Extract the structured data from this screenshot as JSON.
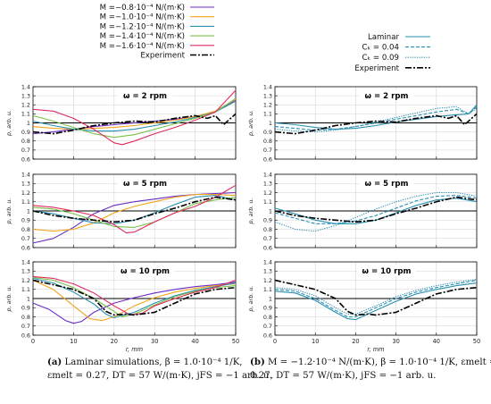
{
  "legend_left": [
    {
      "label": "M =−0.8·10⁻⁴ N/(m·K)",
      "color": "#6a2bc4"
    },
    {
      "label": "M =−1.0·10⁻⁴ N/(m·K)",
      "color": "#f2a51c"
    },
    {
      "label": "M =−1.2·10⁻⁴ N/(m·K)",
      "color": "#2a8fb0"
    },
    {
      "label": "M =−1.4·10⁻⁴ N/(m·K)",
      "color": "#7ac04a"
    },
    {
      "label": "M =−1.6·10⁻⁴ N/(m·K)",
      "color": "#e02a5e"
    },
    {
      "label": "Experiment",
      "color": "#000000"
    }
  ],
  "legend_right": [
    {
      "label": "Laminar",
      "color": "#2a8fb0"
    },
    {
      "label": "Cₖ = 0.04",
      "color": "#2a8fb0"
    },
    {
      "label": "Cₖ = 0.09",
      "color": "#2a8fb0"
    },
    {
      "label": "Experiment",
      "color": "#000000"
    }
  ],
  "captions": {
    "a_tag": "(a)",
    "a_line1": " Laminar simulations, β = 1.0·10⁻⁴ 1/K,",
    "a_line2": "εmelt = 0.27, DT = 57 W/(m·K), jFS = −1 arb. u.",
    "b_tag": "(b)",
    "b_line1": " M = −1.2·10⁻⁴ N/(m·K), β = 1.0·10⁻⁴ 1/K, εmelt =",
    "b_line2": "0.27, DT = 57 W/(m·K), jFS = −1 arb. u."
  },
  "chart_data": [
    {
      "type": "line",
      "panel": "left-1",
      "annotation": "ω = 2 rpm",
      "ylabel": "p, arb. u.",
      "xlim": [
        0,
        50
      ],
      "ylim": [
        0.6,
        1.4
      ],
      "xticks": [],
      "grid": true,
      "series": [
        {
          "name": "M =−0.8·10⁻⁴ N/(m·K)",
          "x": [
            0,
            5,
            10,
            15,
            20,
            25,
            30,
            35,
            40,
            45,
            50
          ],
          "y": [
            0.88,
            0.9,
            0.93,
            0.96,
            0.98,
            1.0,
            1.02,
            1.04,
            1.07,
            1.12,
            1.25
          ]
        },
        {
          "name": "M =−1.0·10⁻⁴ N/(m·K)",
          "x": [
            0,
            5,
            10,
            15,
            20,
            25,
            30,
            35,
            40,
            45,
            50
          ],
          "y": [
            0.96,
            0.94,
            0.93,
            0.94,
            0.95,
            0.97,
            1.0,
            1.03,
            1.07,
            1.13,
            1.26
          ]
        },
        {
          "name": "M =−1.2·10⁻⁴ N/(m·K)",
          "x": [
            0,
            5,
            10,
            15,
            20,
            25,
            30,
            35,
            40,
            45,
            50
          ],
          "y": [
            1.02,
            0.97,
            0.93,
            0.91,
            0.91,
            0.93,
            0.97,
            1.01,
            1.06,
            1.12,
            1.24
          ]
        },
        {
          "name": "M =−1.4·10⁻⁴ N/(m·K)",
          "x": [
            0,
            5,
            10,
            15,
            20,
            25,
            30,
            35,
            40,
            45,
            50
          ],
          "y": [
            1.08,
            1.02,
            0.95,
            0.88,
            0.84,
            0.87,
            0.93,
            0.99,
            1.05,
            1.12,
            1.27
          ]
        },
        {
          "name": "M =−1.6·10⁻⁴ N/(m·K)",
          "x": [
            0,
            5,
            10,
            15,
            20,
            22,
            25,
            30,
            35,
            40,
            45,
            50
          ],
          "y": [
            1.15,
            1.13,
            1.05,
            0.93,
            0.78,
            0.76,
            0.8,
            0.88,
            0.95,
            1.03,
            1.12,
            1.36
          ]
        },
        {
          "name": "Experiment",
          "x": [
            0,
            5,
            10,
            15,
            20,
            25,
            30,
            35,
            40,
            43,
            45,
            47,
            50
          ],
          "y": [
            0.9,
            0.88,
            0.92,
            0.97,
            1.0,
            1.02,
            1.01,
            1.05,
            1.08,
            1.05,
            1.08,
            0.98,
            1.1
          ]
        }
      ]
    },
    {
      "type": "line",
      "panel": "left-2",
      "annotation": "ω = 5 rpm",
      "ylabel": "p, arb. u.",
      "xlim": [
        0,
        50
      ],
      "ylim": [
        0.6,
        1.4
      ],
      "xticks": [],
      "grid": true,
      "series": [
        {
          "name": "M =−0.8·10⁻⁴ N/(m·K)",
          "x": [
            0,
            5,
            10,
            15,
            20,
            25,
            30,
            35,
            40,
            45,
            50
          ],
          "y": [
            0.65,
            0.7,
            0.82,
            0.97,
            1.06,
            1.1,
            1.13,
            1.16,
            1.18,
            1.19,
            1.2
          ]
        },
        {
          "name": "M =−1.0·10⁻⁴ N/(m·K)",
          "x": [
            0,
            5,
            10,
            15,
            20,
            25,
            30,
            35,
            40,
            45,
            50
          ],
          "y": [
            0.8,
            0.78,
            0.8,
            0.87,
            0.98,
            1.05,
            1.1,
            1.15,
            1.18,
            1.18,
            1.17
          ]
        },
        {
          "name": "M =−1.2·10⁻⁴ N/(m·K)",
          "x": [
            0,
            5,
            10,
            15,
            20,
            25,
            30,
            35,
            40,
            45,
            50
          ],
          "y": [
            1.0,
            0.97,
            0.92,
            0.87,
            0.86,
            0.9,
            0.98,
            1.07,
            1.15,
            1.17,
            1.12
          ]
        },
        {
          "name": "M =−1.4·10⁻⁴ N/(m·K)",
          "x": [
            0,
            5,
            10,
            15,
            20,
            25,
            30,
            35,
            40,
            45,
            50
          ],
          "y": [
            1.04,
            1.02,
            0.97,
            0.9,
            0.83,
            0.82,
            0.88,
            0.98,
            1.08,
            1.12,
            1.15
          ]
        },
        {
          "name": "M =−1.6·10⁻⁴ N/(m·K)",
          "x": [
            0,
            5,
            10,
            15,
            20,
            23,
            25,
            30,
            35,
            40,
            45,
            50
          ],
          "y": [
            1.06,
            1.04,
            1.0,
            0.95,
            0.85,
            0.76,
            0.77,
            0.88,
            0.98,
            1.05,
            1.15,
            1.28
          ]
        },
        {
          "name": "Experiment",
          "x": [
            0,
            5,
            10,
            15,
            20,
            25,
            30,
            35,
            40,
            45,
            50
          ],
          "y": [
            1.0,
            0.95,
            0.92,
            0.9,
            0.88,
            0.9,
            0.97,
            1.03,
            1.1,
            1.15,
            1.12
          ]
        }
      ]
    },
    {
      "type": "line",
      "panel": "left-3",
      "annotation": "ω = 10 rpm",
      "xlabel": "r, mm",
      "ylabel": "p, arb. u.",
      "xlim": [
        0,
        50
      ],
      "ylim": [
        0.6,
        1.4
      ],
      "xticks": [
        0,
        10,
        20,
        30,
        40,
        50
      ],
      "grid": true,
      "series": [
        {
          "name": "M =−0.8·10⁻⁴ N/(m·K)",
          "x": [
            0,
            4,
            8,
            10,
            12,
            15,
            20,
            25,
            30,
            35,
            40,
            45,
            50
          ],
          "y": [
            0.95,
            0.88,
            0.76,
            0.73,
            0.75,
            0.85,
            0.95,
            1.01,
            1.06,
            1.1,
            1.13,
            1.15,
            1.18
          ]
        },
        {
          "name": "M =−1.0·10⁻⁴ N/(m·K)",
          "x": [
            0,
            5,
            10,
            14,
            17,
            20,
            25,
            30,
            35,
            40,
            45,
            50
          ],
          "y": [
            1.2,
            1.1,
            0.92,
            0.78,
            0.76,
            0.8,
            0.92,
            1.01,
            1.07,
            1.11,
            1.14,
            1.16
          ]
        },
        {
          "name": "M =−1.2·10⁻⁴ N/(m·K)",
          "x": [
            0,
            5,
            10,
            15,
            18,
            20,
            25,
            30,
            35,
            40,
            45,
            50
          ],
          "y": [
            1.22,
            1.17,
            1.07,
            0.94,
            0.83,
            0.79,
            0.85,
            0.95,
            1.03,
            1.09,
            1.13,
            1.17
          ]
        },
        {
          "name": "M =−1.4·10⁻⁴ N/(m·K)",
          "x": [
            0,
            5,
            10,
            15,
            20,
            22,
            25,
            30,
            35,
            40,
            45,
            50
          ],
          "y": [
            1.23,
            1.2,
            1.12,
            1.0,
            0.86,
            0.8,
            0.83,
            0.93,
            1.02,
            1.08,
            1.12,
            1.14
          ]
        },
        {
          "name": "M =−1.6·10⁻⁴ N/(m·K)",
          "x": [
            0,
            5,
            10,
            15,
            20,
            24,
            27,
            30,
            35,
            40,
            45,
            50
          ],
          "y": [
            1.24,
            1.22,
            1.16,
            1.06,
            0.92,
            0.82,
            0.84,
            0.92,
            1.0,
            1.07,
            1.12,
            1.2
          ]
        },
        {
          "name": "Experiment",
          "x": [
            0,
            5,
            10,
            15,
            18,
            20,
            23,
            25,
            30,
            35,
            40,
            45,
            50
          ],
          "y": [
            1.2,
            1.15,
            1.1,
            1.0,
            0.86,
            0.82,
            0.83,
            0.82,
            0.85,
            0.95,
            1.05,
            1.1,
            1.12
          ]
        }
      ]
    },
    {
      "type": "line",
      "panel": "right-1",
      "annotation": "ω = 2 rpm",
      "ylabel": "p, arb. u.",
      "xlim": [
        0,
        50
      ],
      "ylim": [
        0.6,
        1.4
      ],
      "xticks": [],
      "grid": true,
      "series": [
        {
          "name": "Laminar",
          "x": [
            0,
            5,
            10,
            15,
            20,
            25,
            30,
            35,
            40,
            45,
            48,
            50
          ],
          "y": [
            1.0,
            0.98,
            0.95,
            0.93,
            0.94,
            0.97,
            1.01,
            1.04,
            1.07,
            1.09,
            1.1,
            1.2
          ]
        },
        {
          "name": "Cₖ = 0.04",
          "x": [
            0,
            5,
            10,
            15,
            20,
            25,
            30,
            35,
            40,
            45,
            48,
            50
          ],
          "y": [
            0.96,
            0.94,
            0.92,
            0.93,
            0.96,
            1.0,
            1.04,
            1.08,
            1.12,
            1.15,
            1.1,
            1.18
          ]
        },
        {
          "name": "Cₖ = 0.09",
          "x": [
            0,
            5,
            10,
            15,
            20,
            25,
            30,
            35,
            40,
            45,
            48,
            50
          ],
          "y": [
            0.93,
            0.91,
            0.9,
            0.92,
            0.96,
            1.01,
            1.06,
            1.11,
            1.16,
            1.18,
            1.1,
            1.16
          ]
        },
        {
          "name": "Experiment",
          "x": [
            0,
            5,
            10,
            15,
            20,
            25,
            30,
            35,
            40,
            43,
            45,
            47,
            50
          ],
          "y": [
            0.9,
            0.88,
            0.92,
            0.97,
            1.0,
            1.02,
            1.01,
            1.05,
            1.08,
            1.05,
            1.08,
            0.98,
            1.1
          ]
        }
      ]
    },
    {
      "type": "line",
      "panel": "right-2",
      "annotation": "ω = 5 rpm",
      "ylabel": "p, arb. u.",
      "xlim": [
        0,
        50
      ],
      "ylim": [
        0.6,
        1.4
      ],
      "xticks": [],
      "grid": true,
      "series": [
        {
          "name": "Laminar",
          "x": [
            0,
            5,
            10,
            15,
            20,
            25,
            30,
            35,
            40,
            45,
            50
          ],
          "y": [
            1.03,
            0.97,
            0.9,
            0.86,
            0.86,
            0.9,
            0.98,
            1.06,
            1.12,
            1.14,
            1.1
          ]
        },
        {
          "name": "Cₖ = 0.04",
          "x": [
            0,
            5,
            10,
            15,
            20,
            25,
            30,
            35,
            40,
            45,
            50
          ],
          "y": [
            0.98,
            0.92,
            0.86,
            0.86,
            0.89,
            0.95,
            1.03,
            1.11,
            1.16,
            1.17,
            1.14
          ]
        },
        {
          "name": "Cₖ = 0.09",
          "x": [
            0,
            5,
            10,
            15,
            20,
            25,
            30,
            35,
            40,
            45,
            50
          ],
          "y": [
            0.88,
            0.8,
            0.78,
            0.84,
            0.93,
            1.02,
            1.1,
            1.16,
            1.2,
            1.2,
            1.16
          ]
        },
        {
          "name": "Experiment",
          "x": [
            0,
            5,
            10,
            15,
            20,
            25,
            30,
            35,
            40,
            45,
            50
          ],
          "y": [
            1.0,
            0.95,
            0.92,
            0.9,
            0.88,
            0.9,
            0.97,
            1.03,
            1.1,
            1.15,
            1.12
          ]
        }
      ]
    },
    {
      "type": "line",
      "panel": "right-3",
      "annotation": "ω = 10 rpm",
      "xlabel": "r, mm",
      "ylabel": "p, arb. u.",
      "xlim": [
        0,
        50
      ],
      "ylim": [
        0.6,
        1.4
      ],
      "xticks": [
        0,
        10,
        20,
        30,
        40,
        50
      ],
      "grid": true,
      "series": [
        {
          "name": "Laminar",
          "x": [
            0,
            5,
            10,
            15,
            18,
            20,
            25,
            30,
            35,
            40,
            45,
            50
          ],
          "y": [
            1.08,
            1.06,
            0.98,
            0.85,
            0.78,
            0.77,
            0.87,
            0.97,
            1.05,
            1.1,
            1.14,
            1.17
          ]
        },
        {
          "name": "Cₖ = 0.04",
          "x": [
            0,
            5,
            10,
            15,
            18,
            20,
            25,
            30,
            35,
            40,
            45,
            50
          ],
          "y": [
            1.1,
            1.08,
            1.0,
            0.87,
            0.8,
            0.8,
            0.9,
            1.0,
            1.07,
            1.12,
            1.16,
            1.2
          ]
        },
        {
          "name": "Cₖ = 0.09",
          "x": [
            0,
            5,
            10,
            15,
            18,
            20,
            25,
            30,
            35,
            40,
            45,
            50
          ],
          "y": [
            1.12,
            1.1,
            1.03,
            0.9,
            0.83,
            0.83,
            0.92,
            1.02,
            1.09,
            1.14,
            1.18,
            1.21
          ]
        },
        {
          "name": "Experiment",
          "x": [
            0,
            5,
            10,
            15,
            18,
            20,
            23,
            25,
            30,
            35,
            40,
            45,
            50
          ],
          "y": [
            1.2,
            1.15,
            1.1,
            1.0,
            0.86,
            0.82,
            0.83,
            0.82,
            0.85,
            0.95,
            1.05,
            1.1,
            1.12
          ]
        }
      ]
    }
  ]
}
